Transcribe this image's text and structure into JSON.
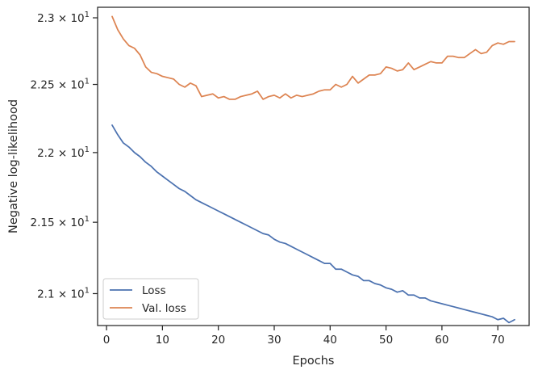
{
  "chart_data": {
    "type": "line",
    "title": "",
    "xlabel": "Epochs",
    "ylabel": "Negative log-likelihood",
    "xlim": [
      -1.6,
      75.6
    ],
    "ylim": [
      20.78,
      23.08
    ],
    "yscale": "log",
    "xticks": [
      0,
      10,
      20,
      30,
      40,
      50,
      60,
      70
    ],
    "yticks": [
      {
        "value": 21.0,
        "mantissa": "2.1",
        "base": "10",
        "exp": "1"
      },
      {
        "value": 21.5,
        "mantissa": "2.15",
        "base": "10",
        "exp": "1"
      },
      {
        "value": 22.0,
        "mantissa": "2.2",
        "base": "10",
        "exp": "1"
      },
      {
        "value": 22.5,
        "mantissa": "2.25",
        "base": "10",
        "exp": "1"
      },
      {
        "value": 23.0,
        "mantissa": "2.3",
        "base": "10",
        "exp": "1"
      }
    ],
    "grid": false,
    "legend_position": "lower-left",
    "series": [
      {
        "name": "Loss",
        "color": "#4c72b0",
        "x": [
          1,
          2,
          3,
          4,
          5,
          6,
          7,
          8,
          9,
          10,
          11,
          12,
          13,
          14,
          15,
          16,
          17,
          18,
          19,
          20,
          21,
          22,
          23,
          24,
          25,
          26,
          27,
          28,
          29,
          30,
          31,
          32,
          33,
          34,
          35,
          36,
          37,
          38,
          39,
          40,
          41,
          42,
          43,
          44,
          45,
          46,
          47,
          48,
          49,
          50,
          51,
          52,
          53,
          54,
          55,
          56,
          57,
          58,
          59,
          60,
          61,
          62,
          63,
          64,
          65,
          66,
          67,
          68,
          69,
          70,
          71,
          72,
          73
        ],
        "values": [
          22.2,
          22.13,
          22.07,
          22.04,
          22.0,
          21.97,
          21.93,
          21.9,
          21.86,
          21.83,
          21.8,
          21.77,
          21.74,
          21.72,
          21.69,
          21.66,
          21.64,
          21.62,
          21.6,
          21.58,
          21.56,
          21.54,
          21.52,
          21.5,
          21.48,
          21.46,
          21.44,
          21.42,
          21.41,
          21.38,
          21.36,
          21.35,
          21.33,
          21.31,
          21.29,
          21.27,
          21.25,
          21.23,
          21.21,
          21.21,
          21.17,
          21.17,
          21.15,
          21.13,
          21.12,
          21.09,
          21.09,
          21.07,
          21.06,
          21.04,
          21.03,
          21.01,
          21.02,
          20.99,
          20.99,
          20.97,
          20.97,
          20.95,
          20.94,
          20.93,
          20.92,
          20.91,
          20.9,
          20.89,
          20.88,
          20.87,
          20.86,
          20.85,
          20.84,
          20.82,
          20.83,
          20.8,
          20.82
        ]
      },
      {
        "name": "Val. loss",
        "color": "#dd8452",
        "x": [
          1,
          2,
          3,
          4,
          5,
          6,
          7,
          8,
          9,
          10,
          11,
          12,
          13,
          14,
          15,
          16,
          17,
          18,
          19,
          20,
          21,
          22,
          23,
          24,
          25,
          26,
          27,
          28,
          29,
          30,
          31,
          32,
          33,
          34,
          35,
          36,
          37,
          38,
          39,
          40,
          41,
          42,
          43,
          44,
          45,
          46,
          47,
          48,
          49,
          50,
          51,
          52,
          53,
          54,
          55,
          56,
          57,
          58,
          59,
          60,
          61,
          62,
          63,
          64,
          65,
          66,
          67,
          68,
          69,
          70,
          71,
          72,
          73
        ],
        "values": [
          23.01,
          22.91,
          22.84,
          22.79,
          22.77,
          22.72,
          22.63,
          22.59,
          22.58,
          22.56,
          22.55,
          22.54,
          22.5,
          22.48,
          22.51,
          22.49,
          22.41,
          22.42,
          22.43,
          22.4,
          22.41,
          22.39,
          22.39,
          22.41,
          22.42,
          22.43,
          22.45,
          22.39,
          22.41,
          22.42,
          22.4,
          22.43,
          22.4,
          22.42,
          22.41,
          22.42,
          22.43,
          22.45,
          22.46,
          22.46,
          22.5,
          22.48,
          22.5,
          22.56,
          22.51,
          22.54,
          22.57,
          22.57,
          22.58,
          22.63,
          22.62,
          22.6,
          22.61,
          22.66,
          22.61,
          22.63,
          22.65,
          22.67,
          22.66,
          22.66,
          22.71,
          22.71,
          22.7,
          22.7,
          22.73,
          22.76,
          22.73,
          22.74,
          22.79,
          22.81,
          22.8,
          22.82,
          22.82
        ]
      }
    ]
  }
}
